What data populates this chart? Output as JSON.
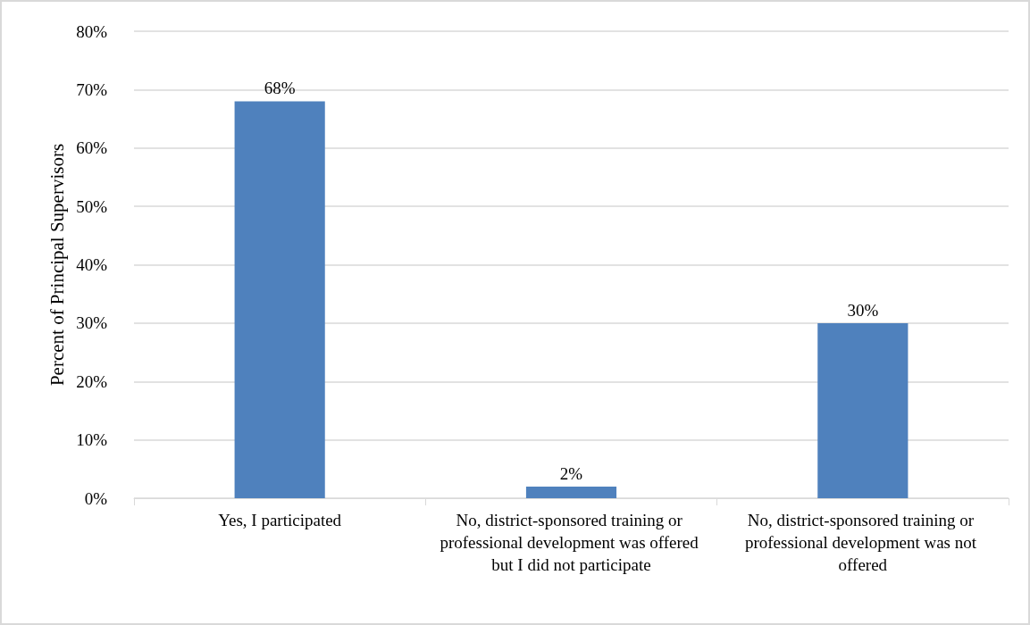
{
  "chart_data": {
    "type": "bar",
    "ylabel": "Percent of Principal Supervisors",
    "categories": [
      "Yes, I participated",
      "No, district-sponsored training or professional development was offered but I did not participate",
      "No, district-sponsored training or professional development was not offered"
    ],
    "values": [
      68,
      2,
      30
    ],
    "color": "#4f81bd",
    "ylim": [
      0,
      80
    ],
    "yticks": [
      {
        "value": 0,
        "label": "0%"
      },
      {
        "value": 10,
        "label": "10%"
      },
      {
        "value": 20,
        "label": "20%"
      },
      {
        "value": 30,
        "label": "30%"
      },
      {
        "value": 40,
        "label": "40%"
      },
      {
        "value": 50,
        "label": "50%"
      },
      {
        "value": 60,
        "label": "60%"
      },
      {
        "value": 70,
        "label": "70%"
      },
      {
        "value": 80,
        "label": "80%"
      }
    ],
    "grid": "y",
    "value_labels": [
      "68%",
      "2%",
      "30%"
    ]
  }
}
